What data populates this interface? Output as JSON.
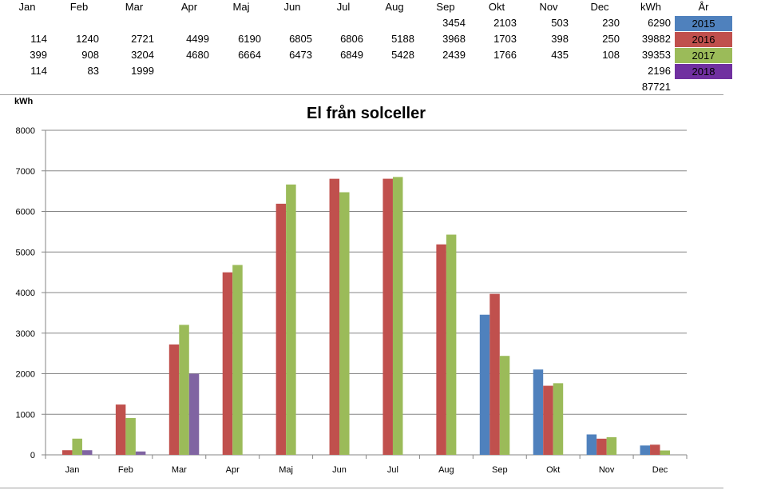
{
  "table": {
    "month_headers": [
      "Jan",
      "Feb",
      "Mar",
      "Apr",
      "Maj",
      "Jun",
      "Jul",
      "Aug",
      "Sep",
      "Okt",
      "Nov",
      "Dec"
    ],
    "kwh_header": "kWh",
    "year_header": "År",
    "rows": [
      {
        "year": "2015",
        "values": [
          null,
          null,
          null,
          null,
          null,
          null,
          null,
          null,
          3454,
          2103,
          503,
          230
        ],
        "total": 6290,
        "color": "#4F81BD"
      },
      {
        "year": "2016",
        "values": [
          114,
          1240,
          2721,
          4499,
          6190,
          6805,
          6806,
          5188,
          3968,
          1703,
          398,
          250
        ],
        "total": 39882,
        "color": "#C0504D"
      },
      {
        "year": "2017",
        "values": [
          399,
          908,
          3204,
          4680,
          6664,
          6473,
          6849,
          5428,
          2439,
          1766,
          435,
          108
        ],
        "total": 39353,
        "color": "#9BBB59"
      },
      {
        "year": "2018",
        "values": [
          114,
          83,
          1999,
          null,
          null,
          null,
          null,
          null,
          null,
          null,
          null,
          null
        ],
        "total": 2196,
        "color": "#7030A0"
      }
    ],
    "grand_total": 87721
  },
  "chart_data": {
    "type": "bar",
    "title": "El från solceller",
    "ylabel": "kWh",
    "xlabel": "",
    "ylim": [
      0,
      8000
    ],
    "yticks": [
      0,
      1000,
      2000,
      3000,
      4000,
      5000,
      6000,
      7000,
      8000
    ],
    "grid": true,
    "legend": "none",
    "categories": [
      "Jan",
      "Feb",
      "Mar",
      "Apr",
      "Maj",
      "Jun",
      "Jul",
      "Aug",
      "Sep",
      "Okt",
      "Nov",
      "Dec"
    ],
    "series": [
      {
        "name": "2015",
        "color": "#4F81BD",
        "values": [
          null,
          null,
          null,
          null,
          null,
          null,
          null,
          null,
          3454,
          2103,
          503,
          230
        ]
      },
      {
        "name": "2016",
        "color": "#C0504D",
        "values": [
          114,
          1240,
          2721,
          4499,
          6190,
          6805,
          6806,
          5188,
          3968,
          1703,
          398,
          250
        ]
      },
      {
        "name": "2017",
        "color": "#9BBB59",
        "values": [
          399,
          908,
          3204,
          4680,
          6664,
          6473,
          6849,
          5428,
          2439,
          1766,
          435,
          108
        ]
      },
      {
        "name": "2018",
        "color": "#8064A2",
        "values": [
          114,
          83,
          1999,
          null,
          null,
          null,
          null,
          null,
          null,
          null,
          null,
          null
        ]
      }
    ]
  }
}
